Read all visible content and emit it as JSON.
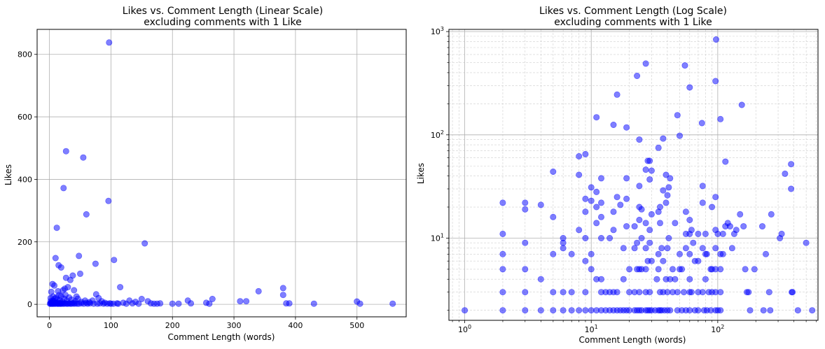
{
  "chart_data": [
    {
      "type": "scatter",
      "title_line1": "Likes vs. Comment Length (Linear Scale)",
      "title_line2": "excluding comments with 1 Like",
      "xlabel": "Comment Length (words)",
      "ylabel": "Likes",
      "xscale": "linear",
      "yscale": "linear",
      "xlim": [
        -20,
        580
      ],
      "ylim": [
        -40,
        880
      ],
      "xticks": [
        0,
        100,
        200,
        300,
        400,
        500
      ],
      "yticks": [
        0,
        200,
        400,
        600,
        800
      ],
      "grid": true,
      "color": "#0000ff",
      "points": [
        [
          97,
          838
        ],
        [
          27,
          490
        ],
        [
          55,
          470
        ],
        [
          23,
          372
        ],
        [
          60,
          288
        ],
        [
          96,
          331
        ],
        [
          12,
          245
        ],
        [
          155,
          195
        ],
        [
          10,
          148
        ],
        [
          48,
          155
        ],
        [
          105,
          142
        ],
        [
          15,
          125
        ],
        [
          19,
          118
        ],
        [
          75,
          130
        ],
        [
          50,
          98
        ],
        [
          38,
          92
        ],
        [
          34,
          78
        ],
        [
          27,
          85
        ],
        [
          30,
          55
        ],
        [
          25,
          50
        ],
        [
          22,
          45
        ],
        [
          40,
          45
        ],
        [
          5,
          65
        ],
        [
          8,
          60
        ],
        [
          115,
          55
        ],
        [
          3,
          40
        ],
        [
          14,
          42
        ],
        [
          340,
          42
        ],
        [
          380,
          52
        ],
        [
          380,
          30
        ],
        [
          265,
          17
        ],
        [
          150,
          17
        ],
        [
          225,
          12
        ],
        [
          320,
          10
        ],
        [
          310,
          10
        ],
        [
          500,
          9
        ],
        [
          430,
          2
        ],
        [
          385,
          3
        ],
        [
          390,
          3
        ],
        [
          505,
          2
        ],
        [
          558,
          2
        ],
        [
          210,
          2
        ],
        [
          200,
          2
        ],
        [
          230,
          3
        ],
        [
          260,
          2
        ],
        [
          255,
          5
        ],
        [
          180,
          3
        ],
        [
          170,
          2
        ],
        [
          160,
          10
        ],
        [
          140,
          8
        ],
        [
          130,
          12
        ],
        [
          120,
          5
        ],
        [
          110,
          3
        ],
        [
          100,
          2
        ],
        [
          90,
          5
        ],
        [
          85,
          10
        ],
        [
          80,
          20
        ],
        [
          76,
          32
        ],
        [
          70,
          12
        ],
        [
          65,
          7
        ],
        [
          60,
          5
        ],
        [
          58,
          12
        ],
        [
          52,
          8
        ],
        [
          46,
          18
        ],
        [
          44,
          25
        ],
        [
          42,
          10
        ],
        [
          36,
          15
        ],
        [
          32,
          22
        ],
        [
          28,
          12
        ],
        [
          26,
          30
        ],
        [
          24,
          18
        ],
        [
          21,
          8
        ],
        [
          19,
          26
        ],
        [
          17,
          12
        ],
        [
          16,
          30
        ],
        [
          13,
          15
        ],
        [
          11,
          22
        ],
        [
          9,
          18
        ],
        [
          7,
          10
        ],
        [
          6,
          25
        ],
        [
          5,
          12
        ],
        [
          4,
          8
        ],
        [
          3,
          5
        ],
        [
          2,
          20
        ],
        [
          2,
          10
        ],
        [
          1,
          2
        ],
        [
          2,
          2
        ],
        [
          3,
          2
        ],
        [
          4,
          3
        ],
        [
          5,
          2
        ],
        [
          6,
          2
        ],
        [
          7,
          3
        ],
        [
          8,
          2
        ],
        [
          9,
          4
        ],
        [
          10,
          2
        ],
        [
          11,
          3
        ],
        [
          12,
          5
        ],
        [
          13,
          2
        ],
        [
          14,
          2
        ],
        [
          15,
          3
        ],
        [
          16,
          2
        ],
        [
          17,
          4
        ],
        [
          18,
          2
        ],
        [
          19,
          2
        ],
        [
          20,
          3
        ],
        [
          22,
          2
        ],
        [
          24,
          2
        ],
        [
          26,
          3
        ],
        [
          28,
          2
        ],
        [
          30,
          2
        ],
        [
          32,
          3
        ],
        [
          34,
          2
        ],
        [
          36,
          2
        ],
        [
          38,
          4
        ],
        [
          40,
          2
        ],
        [
          42,
          3
        ],
        [
          45,
          2
        ],
        [
          48,
          2
        ],
        [
          52,
          3
        ],
        [
          56,
          2
        ],
        [
          62,
          2
        ],
        [
          66,
          3
        ],
        [
          72,
          2
        ],
        [
          78,
          2
        ],
        [
          82,
          3
        ],
        [
          88,
          2
        ],
        [
          94,
          2
        ],
        [
          98,
          3
        ],
        [
          104,
          2
        ],
        [
          112,
          2
        ],
        [
          125,
          2
        ],
        [
          135,
          3
        ],
        [
          145,
          2
        ],
        [
          165,
          3
        ],
        [
          175,
          2
        ]
      ]
    },
    {
      "type": "scatter",
      "title_line1": "Likes vs. Comment Length (Log Scale)",
      "title_line2": "excluding comments with 1 Like",
      "xlabel": "Comment Length (words)",
      "ylabel": "Likes",
      "xscale": "log",
      "yscale": "log",
      "xlim": [
        0.75,
        620
      ],
      "ylim": [
        1.6,
        1050
      ],
      "xticks": [
        1,
        10,
        100
      ],
      "yticks": [
        10,
        100,
        1000
      ],
      "grid": true,
      "color": "#0000ff",
      "points": [
        [
          1,
          2
        ],
        [
          2,
          22
        ],
        [
          2,
          11
        ],
        [
          2,
          7
        ],
        [
          2,
          5
        ],
        [
          2,
          3
        ],
        [
          2,
          2
        ],
        [
          3,
          22
        ],
        [
          3,
          19
        ],
        [
          3,
          9
        ],
        [
          3,
          5
        ],
        [
          3,
          3
        ],
        [
          3,
          2
        ],
        [
          4,
          21
        ],
        [
          4,
          4
        ],
        [
          4,
          2
        ],
        [
          5,
          44
        ],
        [
          5,
          16
        ],
        [
          5,
          7
        ],
        [
          5,
          3
        ],
        [
          5,
          2
        ],
        [
          6,
          10
        ],
        [
          6,
          9
        ],
        [
          6,
          8
        ],
        [
          6,
          3
        ],
        [
          6,
          2
        ],
        [
          7,
          7
        ],
        [
          7,
          3
        ],
        [
          7,
          2
        ],
        [
          8,
          62
        ],
        [
          8,
          41
        ],
        [
          8,
          12
        ],
        [
          8,
          2
        ],
        [
          9,
          65
        ],
        [
          9,
          24
        ],
        [
          9,
          18
        ],
        [
          9,
          10
        ],
        [
          9,
          6
        ],
        [
          9,
          3
        ],
        [
          9,
          2
        ],
        [
          10,
          31
        ],
        [
          10,
          23
        ],
        [
          10,
          7
        ],
        [
          10,
          5
        ],
        [
          10,
          2
        ],
        [
          11,
          148
        ],
        [
          11,
          28
        ],
        [
          11,
          20
        ],
        [
          11,
          14
        ],
        [
          11,
          4
        ],
        [
          11,
          2
        ],
        [
          12,
          38
        ],
        [
          12,
          22
        ],
        [
          12,
          16
        ],
        [
          12,
          10
        ],
        [
          12,
          4
        ],
        [
          12,
          3
        ],
        [
          12,
          2
        ],
        [
          13,
          3
        ],
        [
          13,
          2
        ],
        [
          14,
          10
        ],
        [
          14,
          3
        ],
        [
          14,
          2
        ],
        [
          15,
          125
        ],
        [
          15,
          18
        ],
        [
          15,
          12
        ],
        [
          15,
          3
        ],
        [
          15,
          2
        ],
        [
          16,
          245
        ],
        [
          16,
          25
        ],
        [
          16,
          3
        ],
        [
          16,
          2
        ],
        [
          17,
          21
        ],
        [
          17,
          2
        ],
        [
          18,
          8
        ],
        [
          18,
          4
        ],
        [
          18,
          2
        ],
        [
          19,
          118
        ],
        [
          19,
          38
        ],
        [
          19,
          24
        ],
        [
          19,
          13
        ],
        [
          19,
          2
        ],
        [
          20,
          5
        ],
        [
          20,
          3
        ],
        [
          20,
          2
        ],
        [
          22,
          13
        ],
        [
          22,
          8
        ],
        [
          22,
          3
        ],
        [
          22,
          2
        ],
        [
          23,
          372
        ],
        [
          23,
          9
        ],
        [
          23,
          5
        ],
        [
          23,
          2
        ],
        [
          24,
          90
        ],
        [
          24,
          32
        ],
        [
          24,
          20
        ],
        [
          24,
          15
        ],
        [
          24,
          5
        ],
        [
          24,
          3
        ],
        [
          24,
          2
        ],
        [
          25,
          19
        ],
        [
          25,
          10
        ],
        [
          25,
          5
        ],
        [
          25,
          2
        ],
        [
          27,
          490
        ],
        [
          27,
          46
        ],
        [
          27,
          14
        ],
        [
          27,
          8
        ],
        [
          27,
          5
        ],
        [
          27,
          3
        ],
        [
          27,
          2
        ],
        [
          28,
          56
        ],
        [
          28,
          6
        ],
        [
          28,
          2
        ],
        [
          29,
          56
        ],
        [
          29,
          37
        ],
        [
          29,
          12
        ],
        [
          29,
          9
        ],
        [
          29,
          3
        ],
        [
          29,
          2
        ],
        [
          30,
          45
        ],
        [
          30,
          17
        ],
        [
          30,
          6
        ],
        [
          30,
          2
        ],
        [
          32,
          2
        ],
        [
          33,
          4
        ],
        [
          34,
          75
        ],
        [
          34,
          18
        ],
        [
          34,
          7
        ],
        [
          34,
          5
        ],
        [
          34,
          2
        ],
        [
          35,
          20
        ],
        [
          35,
          14
        ],
        [
          35,
          3
        ],
        [
          35,
          2
        ],
        [
          36,
          8
        ],
        [
          36,
          2
        ],
        [
          37,
          92
        ],
        [
          37,
          29
        ],
        [
          37,
          6
        ],
        [
          37,
          3
        ],
        [
          38,
          2
        ],
        [
          39,
          41
        ],
        [
          39,
          22
        ],
        [
          39,
          4
        ],
        [
          40,
          26
        ],
        [
          40,
          8
        ],
        [
          40,
          3
        ],
        [
          40,
          2
        ],
        [
          41,
          31
        ],
        [
          41,
          10
        ],
        [
          42,
          38
        ],
        [
          42,
          4
        ],
        [
          42,
          2
        ],
        [
          44,
          5
        ],
        [
          44,
          3
        ],
        [
          46,
          14
        ],
        [
          46,
          4
        ],
        [
          48,
          155
        ],
        [
          48,
          3
        ],
        [
          48,
          2
        ],
        [
          50,
          98
        ],
        [
          50,
          7
        ],
        [
          50,
          5
        ],
        [
          52,
          5
        ],
        [
          52,
          2
        ],
        [
          54,
          3
        ],
        [
          55,
          470
        ],
        [
          56,
          18
        ],
        [
          56,
          11
        ],
        [
          56,
          8
        ],
        [
          56,
          2
        ],
        [
          60,
          288
        ],
        [
          60,
          15
        ],
        [
          60,
          11
        ],
        [
          60,
          7
        ],
        [
          60,
          4
        ],
        [
          60,
          3
        ],
        [
          60,
          2
        ],
        [
          62,
          12
        ],
        [
          62,
          3
        ],
        [
          64,
          9
        ],
        [
          66,
          6
        ],
        [
          66,
          2
        ],
        [
          70,
          11
        ],
        [
          70,
          6
        ],
        [
          70,
          3
        ],
        [
          70,
          2
        ],
        [
          75,
          130
        ],
        [
          76,
          32
        ],
        [
          76,
          22
        ],
        [
          76,
          8
        ],
        [
          76,
          3
        ],
        [
          78,
          2
        ],
        [
          80,
          11
        ],
        [
          80,
          7
        ],
        [
          80,
          4
        ],
        [
          82,
          7
        ],
        [
          82,
          2
        ],
        [
          85,
          3
        ],
        [
          88,
          5
        ],
        [
          88,
          2
        ],
        [
          90,
          20
        ],
        [
          90,
          5
        ],
        [
          90,
          3
        ],
        [
          96,
          331
        ],
        [
          97,
          838
        ],
        [
          96,
          25
        ],
        [
          96,
          12
        ],
        [
          96,
          8
        ],
        [
          96,
          5
        ],
        [
          96,
          3
        ],
        [
          96,
          2
        ],
        [
          100,
          11
        ],
        [
          100,
          2
        ],
        [
          105,
          142
        ],
        [
          105,
          7
        ],
        [
          105,
          5
        ],
        [
          105,
          3
        ],
        [
          105,
          2
        ],
        [
          110,
          11
        ],
        [
          110,
          7
        ],
        [
          115,
          55
        ],
        [
          115,
          13
        ],
        [
          120,
          14
        ],
        [
          125,
          13
        ],
        [
          130,
          8
        ],
        [
          135,
          11
        ],
        [
          140,
          12
        ],
        [
          150,
          17
        ],
        [
          155,
          195
        ],
        [
          160,
          13
        ],
        [
          165,
          5
        ],
        [
          170,
          3
        ],
        [
          175,
          3
        ],
        [
          180,
          2
        ],
        [
          195,
          5
        ],
        [
          225,
          13
        ],
        [
          230,
          2
        ],
        [
          240,
          7
        ],
        [
          255,
          3
        ],
        [
          260,
          2
        ],
        [
          265,
          17
        ],
        [
          310,
          10
        ],
        [
          320,
          11
        ],
        [
          340,
          42
        ],
        [
          380,
          52
        ],
        [
          380,
          30
        ],
        [
          385,
          3
        ],
        [
          390,
          3
        ],
        [
          430,
          2
        ],
        [
          500,
          9
        ],
        [
          558,
          2
        ]
      ]
    }
  ]
}
